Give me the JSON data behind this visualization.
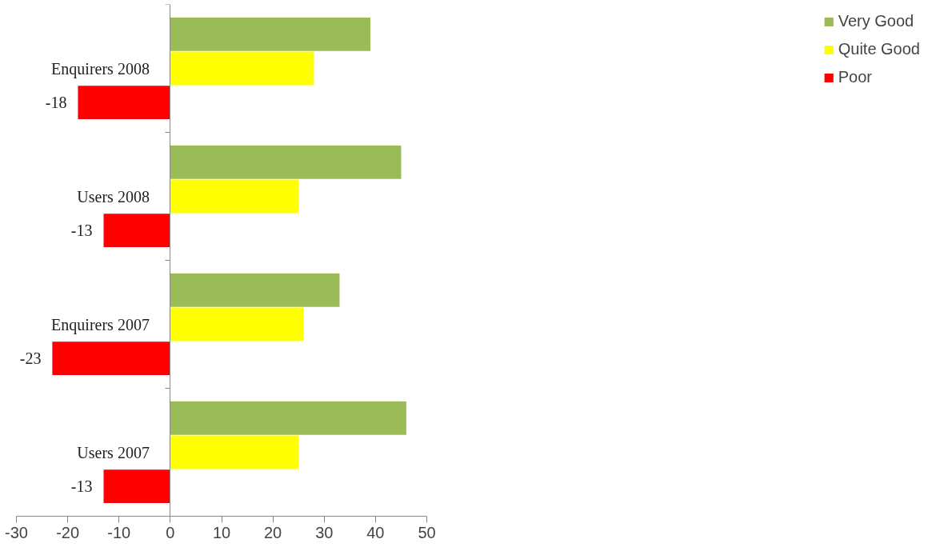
{
  "chart_data": {
    "type": "bar",
    "orientation": "horizontal",
    "categories": [
      "Enquirers 2008",
      "Users 2008",
      "Enquirers 2007",
      "Users 2007"
    ],
    "series": [
      {
        "name": "Very Good",
        "color": "#9bbb59",
        "values": [
          39,
          45,
          33,
          46
        ]
      },
      {
        "name": "Quite Good",
        "color": "#ffff00",
        "values": [
          28,
          25,
          26,
          25
        ]
      },
      {
        "name": "Poor",
        "color": "#ff0000",
        "values": [
          -18,
          -13,
          -23,
          -13
        ],
        "value_labels": [
          "-18",
          "-13",
          "-23",
          "-13"
        ]
      }
    ],
    "xlim": [
      -30,
      50
    ],
    "xticks": [
      -30,
      -20,
      -10,
      0,
      10,
      20,
      30,
      40,
      50
    ],
    "grid": false,
    "legend": "right"
  }
}
